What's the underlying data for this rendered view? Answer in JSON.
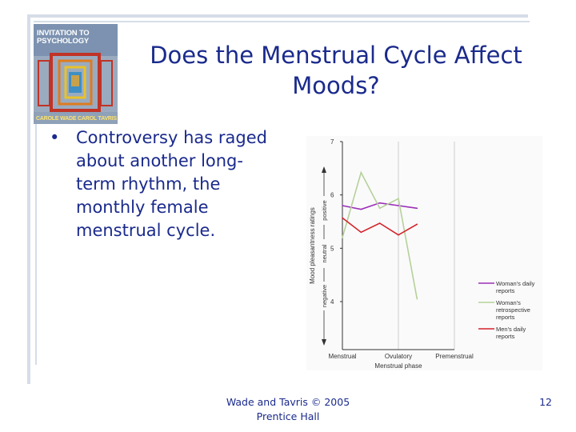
{
  "slide": {
    "title": "Does the Menstrual Cycle Affect Moods?",
    "bullet": "Controversy has raged about another long-term rhythm, the monthly female menstrual cycle.",
    "bullet_symbol": "•",
    "footer": [
      "Wade and Tavris © 2005",
      "Prentice Hall"
    ],
    "page_number": "12",
    "text_color": "#1a2a8c"
  },
  "cover": {
    "title": "INVITATION TO PSYCHOLOGY",
    "authors": "CAROLE WADE   CAROL TAVRIS"
  },
  "chart_data": {
    "type": "line",
    "categories": [
      "Menstrual",
      "Ovulatory",
      "Premenstrual"
    ],
    "x": [
      0,
      0.5,
      1,
      1.5,
      2,
      2.5,
      3
    ],
    "xlabel": "Menstrual phase",
    "ylabel": "Mood pleasantness ratings",
    "ylabel_scale": {
      "negative": "negative",
      "neutral": "neutral",
      "positive": "positive"
    },
    "ylim": [
      3.1,
      7
    ],
    "yticks": [
      4,
      5,
      6,
      7
    ],
    "grid": "vertical lines at phases",
    "legend": "right",
    "series": [
      {
        "name": "Woman's daily reports",
        "color": "#9b2fb8",
        "values": [
          5.8,
          5.73,
          5.85,
          5.8,
          5.75,
          null,
          null
        ]
      },
      {
        "name": "Woman's retrospective reports",
        "color": "#b5d19a",
        "values": [
          5.2,
          6.42,
          5.75,
          5.93,
          4.05,
          null,
          null
        ]
      },
      {
        "name": "Men's daily reports",
        "color": "#d4232a",
        "values": [
          5.57,
          5.3,
          5.47,
          5.25,
          5.45,
          null,
          null
        ]
      }
    ]
  }
}
